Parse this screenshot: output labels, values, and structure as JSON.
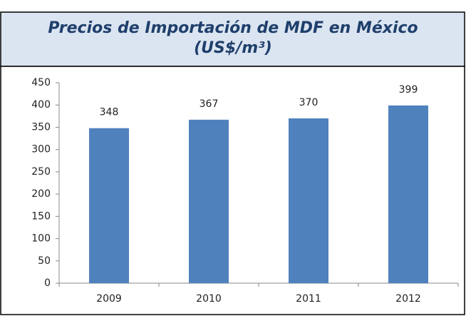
{
  "chart_data": {
    "type": "bar",
    "title": "Precios de Importación de MDF en México",
    "subtitle": "(US$/m³)",
    "categories": [
      "2009",
      "2010",
      "2011",
      "2012"
    ],
    "values": [
      348,
      367,
      370,
      399
    ],
    "color": "#4f81bd",
    "ylim": [
      0,
      450
    ],
    "yticks": [
      0,
      50,
      100,
      150,
      200,
      250,
      300,
      350,
      400,
      450
    ],
    "grid": false
  }
}
